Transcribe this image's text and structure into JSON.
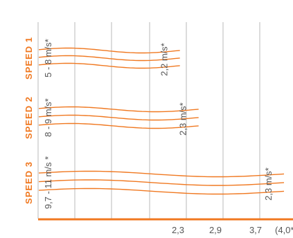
{
  "colors": {
    "accent": "#f07820",
    "text": "#555555",
    "grid": "#b8b8b8",
    "label_bg": "#ffffff"
  },
  "chart_data": {
    "type": "line",
    "title": "",
    "xlabel": "",
    "ylabel": "",
    "grid": true,
    "x_ticks": [
      "2,3",
      "2,9",
      "3,7",
      "(4,0**"
    ],
    "groups": [
      {
        "label": "SPEED 1",
        "rate": "5 - 8 m/s*",
        "peak": "2,2 m/s*",
        "wave_count": 3,
        "x_extent": [
          0,
          2.2
        ]
      },
      {
        "label": "SPEED 2",
        "rate": "8 - 9 m/s*",
        "peak": "2,3 m/s*",
        "wave_count": 3,
        "x_extent": [
          0,
          2.5
        ]
      },
      {
        "label": "SPEED 3",
        "rate": "9,7 - 11 m/s *",
        "peak": "2,3 m/s*",
        "wave_count": 3,
        "x_extent": [
          0,
          4.0
        ]
      }
    ]
  }
}
